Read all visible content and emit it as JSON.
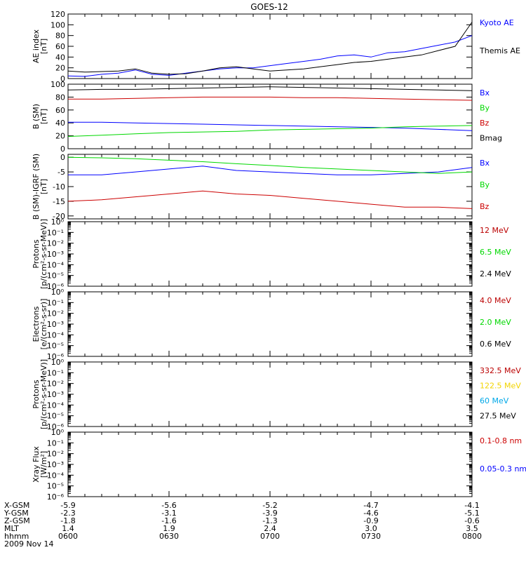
{
  "title": "GOES-12",
  "colors": {
    "black": "#000000",
    "blue": "#0000ff",
    "red": "#cc0000",
    "green": "#00d800",
    "darkred": "#bb0000",
    "yellow": "#f2d400",
    "cyan": "#00a8e8"
  },
  "chart_data": [
    {
      "id": "ae",
      "type": "line",
      "ylabel": [
        "AE index",
        "[nT]"
      ],
      "ylim": [
        0,
        120
      ],
      "yticks": [
        "0",
        "20",
        "40",
        "60",
        "80",
        "100",
        "120"
      ],
      "x": [
        0,
        5,
        10,
        15,
        20,
        25,
        30,
        35,
        40,
        45,
        50,
        55,
        60,
        65,
        70,
        75,
        80,
        85,
        90,
        95,
        100,
        105,
        110,
        115,
        120
      ],
      "series": [
        {
          "name": "Kyoto AE",
          "color": "blue",
          "values": [
            5,
            4,
            8,
            10,
            16,
            8,
            6,
            10,
            14,
            18,
            20,
            20,
            24,
            28,
            32,
            36,
            42,
            44,
            40,
            48,
            50,
            56,
            62,
            68,
            80
          ]
        },
        {
          "name": "Themis AE",
          "color": "black",
          "values": [
            14,
            12,
            13,
            14,
            18,
            10,
            8,
            9,
            14,
            20,
            22,
            18,
            14,
            16,
            18,
            22,
            26,
            30,
            32,
            36,
            40,
            44,
            52,
            60,
            105
          ]
        }
      ]
    },
    {
      "id": "bsm",
      "type": "line",
      "ylabel": [
        "B (SM)",
        "[nT]"
      ],
      "ylim": [
        0,
        100
      ],
      "yticks": [
        "0",
        "20",
        "40",
        "60",
        "80",
        "100"
      ],
      "x": [
        0,
        10,
        20,
        30,
        40,
        50,
        60,
        70,
        80,
        90,
        100,
        110,
        120
      ],
      "series": [
        {
          "name": "Bx",
          "color": "blue",
          "values": [
            41,
            41,
            40,
            39,
            38,
            37,
            36,
            35,
            34,
            33,
            32,
            30,
            28
          ]
        },
        {
          "name": "By",
          "color": "green",
          "values": [
            19,
            21,
            23,
            25,
            26,
            27,
            29,
            30,
            31,
            32,
            34,
            35,
            36
          ]
        },
        {
          "name": "Bz",
          "color": "red",
          "values": [
            77,
            77,
            78,
            79,
            80,
            80,
            80,
            79,
            79,
            78,
            77,
            76,
            75
          ]
        },
        {
          "name": "Bmag",
          "color": "black",
          "values": [
            91,
            92,
            92,
            93,
            94,
            95,
            96,
            95,
            94,
            93,
            92,
            91,
            90
          ]
        }
      ]
    },
    {
      "id": "bresid",
      "type": "line",
      "ylabel": [
        "B (SM)-IGRF (SM)",
        "[nT]"
      ],
      "ylim": [
        -21,
        1
      ],
      "yticks": [
        "-20",
        "-15",
        "-10",
        "-5",
        "0"
      ],
      "ytickvals": [
        -20,
        -15,
        -10,
        -5,
        0
      ],
      "x": [
        0,
        10,
        20,
        30,
        40,
        50,
        60,
        70,
        80,
        90,
        100,
        110,
        120
      ],
      "series": [
        {
          "name": "Bx",
          "color": "blue",
          "values": [
            -6.0,
            -6.0,
            -5.0,
            -4.0,
            -3.0,
            -4.5,
            -5.0,
            -5.5,
            -6.0,
            -6.0,
            -5.5,
            -5.0,
            -3.5
          ]
        },
        {
          "name": "By",
          "color": "green",
          "values": [
            0.0,
            -0.2,
            -0.5,
            -1.0,
            -1.5,
            -2.2,
            -2.8,
            -3.5,
            -4.0,
            -4.5,
            -5.0,
            -5.5,
            -5.0
          ]
        },
        {
          "name": "Bz",
          "color": "red",
          "values": [
            -15.0,
            -14.5,
            -13.5,
            -12.5,
            -11.5,
            -12.5,
            -13.0,
            -14.0,
            -15.0,
            -16.0,
            -17.0,
            -17.0,
            -17.5
          ]
        }
      ]
    },
    {
      "id": "protons1",
      "type": "line",
      "ylabel": [
        "Protons",
        "[p/(cm²-s-sr-MeV)]"
      ],
      "log": true,
      "ylim": [
        1e-06,
        1
      ],
      "yticks": [
        "10⁰",
        "10⁻¹",
        "10⁻²",
        "10⁻³",
        "10⁻⁴",
        "10⁻⁵",
        "10⁻⁶"
      ],
      "series": [
        {
          "name": "12 MeV",
          "color": "darkred",
          "values": []
        },
        {
          "name": "6.5 MeV",
          "color": "green",
          "values": []
        },
        {
          "name": "2.4 MeV",
          "color": "black",
          "values": []
        }
      ]
    },
    {
      "id": "electrons",
      "type": "line",
      "ylabel": [
        "Electrons",
        "[e/(cm²-s-sr)]"
      ],
      "log": true,
      "ylim": [
        1e-06,
        1
      ],
      "yticks": [
        "10⁰",
        "10⁻¹",
        "10⁻²",
        "10⁻³",
        "10⁻⁴",
        "10⁻⁵",
        "10⁻⁶"
      ],
      "series": [
        {
          "name": "4.0 MeV",
          "color": "darkred",
          "values": []
        },
        {
          "name": "2.0 MeV",
          "color": "green",
          "values": []
        },
        {
          "name": "0.6 MeV",
          "color": "black",
          "values": []
        }
      ]
    },
    {
      "id": "protons2",
      "type": "line",
      "ylabel": [
        "Protons",
        "[p/(cm²-s-sr-MeV)]"
      ],
      "log": true,
      "ylim": [
        1e-06,
        1
      ],
      "yticks": [
        "10⁰",
        "10⁻¹",
        "10⁻²",
        "10⁻³",
        "10⁻⁴",
        "10⁻⁵",
        "10⁻⁶"
      ],
      "series": [
        {
          "name": "332.5 MeV",
          "color": "darkred",
          "values": []
        },
        {
          "name": "122.5 MeV",
          "color": "yellow",
          "values": []
        },
        {
          "name": "60 MeV",
          "color": "cyan",
          "values": []
        },
        {
          "name": "27.5 MeV",
          "color": "black",
          "values": []
        }
      ]
    },
    {
      "id": "xray",
      "type": "line",
      "ylabel": [
        "Xray Flux",
        "[W/m²]"
      ],
      "log": true,
      "ylim": [
        1e-06,
        1
      ],
      "yticks": [
        "10⁰",
        "10⁻¹",
        "10⁻²",
        "10⁻³",
        "10⁻⁴",
        "10⁻⁵",
        "10⁻⁶"
      ],
      "series": [
        {
          "name": "0.1-0.8 nm",
          "color": "red",
          "values": []
        },
        {
          "name": "0.05-0.3 nm",
          "color": "blue",
          "values": []
        }
      ]
    }
  ],
  "xaxis": {
    "rows": [
      {
        "label": "X-GSM",
        "values": [
          "-5.9",
          "-5.6",
          "-5.2",
          "-4.7",
          "-4.1"
        ]
      },
      {
        "label": "Y-GSM",
        "values": [
          "-2.3",
          "-3.1",
          "-3.9",
          "-4.6",
          "-5.1"
        ]
      },
      {
        "label": "Z-GSM",
        "values": [
          "-1.8",
          "-1.6",
          "-1.3",
          "-0.9",
          "-0.6"
        ]
      },
      {
        "label": "MLT",
        "values": [
          "1.4",
          "1.9",
          "2.4",
          "3.0",
          "3.5"
        ]
      },
      {
        "label": "hhmm",
        "values": [
          "0600",
          "0630",
          "0700",
          "0730",
          "0800"
        ]
      }
    ],
    "date": "2009 Nov 14"
  }
}
